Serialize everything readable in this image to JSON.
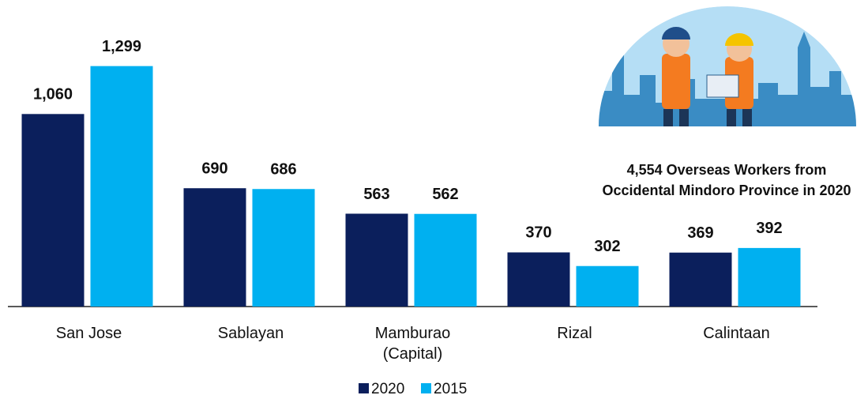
{
  "chart_data": {
    "type": "bar",
    "categories": [
      "San Jose",
      "Sablayan",
      "Mamburao\n(Capital)",
      "Rizal",
      "Calintaan"
    ],
    "series": [
      {
        "name": "2020",
        "color": "#0b1f5c",
        "values": [
          1060,
          690,
          563,
          370,
          369
        ],
        "value_labels": [
          "1,060",
          "690",
          "563",
          "370",
          "369"
        ]
      },
      {
        "name": "2015",
        "color": "#00b0f0",
        "values": [
          1299,
          686,
          562,
          302,
          392
        ],
        "value_labels": [
          "1,299",
          "686",
          "562",
          "302",
          "392"
        ]
      }
    ],
    "ylim": [
      100,
      1400
    ],
    "annotation": "4,554 Overseas Workers from\nOccidental Mindoro Province in 2020"
  }
}
